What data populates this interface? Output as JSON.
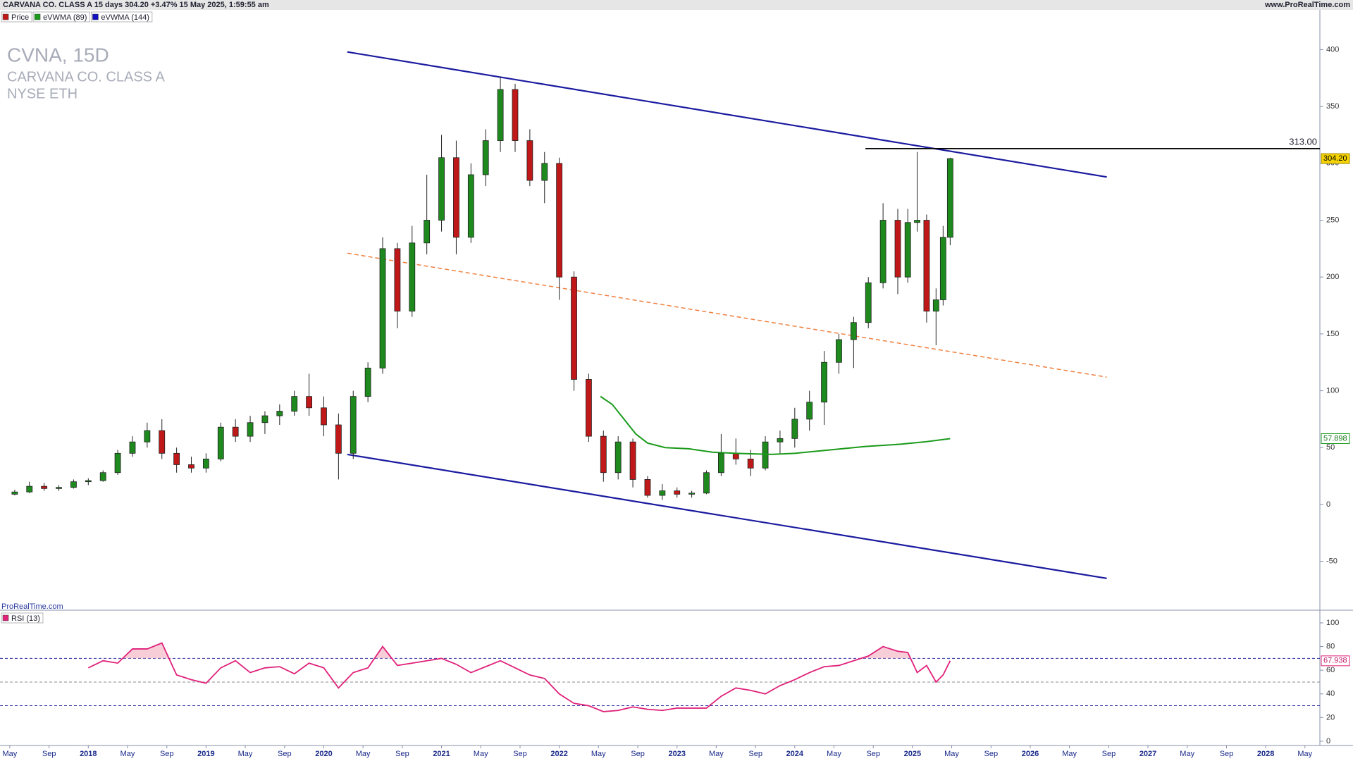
{
  "header": {
    "instrument": "CARVANA CO. CLASS A 15 days 304.20 +3.47% 15 May 2025, 1:59:55 am",
    "site": "www.ProRealTime.com"
  },
  "chart_data": {
    "type": "candlestick",
    "title": "CVNA, 15D",
    "subtitle": "CARVANA CO. CLASS A",
    "exchange": "NYSE ETH",
    "watermark": "ProRealTime.com",
    "legend": [
      {
        "name": "Price",
        "color": "#c01818"
      },
      {
        "name": "eVWMA (89)",
        "color": "#1a9a1a"
      },
      {
        "name": "eVWMA (144)",
        "color": "#1010c0"
      }
    ],
    "up_color": "#1e8a1e",
    "down_color": "#c01818",
    "candles": {
      "x": [
        2017.375,
        2017.5,
        2017.625,
        2017.75,
        2017.875,
        2018,
        2018.125,
        2018.25,
        2018.375,
        2018.5,
        2018.625,
        2018.75,
        2018.875,
        2019,
        2019.125,
        2019.25,
        2019.375,
        2019.5,
        2019.625,
        2019.75,
        2019.875,
        2020,
        2020.125,
        2020.25,
        2020.375,
        2020.5,
        2020.625,
        2020.75,
        2020.875,
        2021,
        2021.125,
        2021.25,
        2021.375,
        2021.5,
        2021.625,
        2021.75,
        2021.875,
        2022,
        2022.125,
        2022.25,
        2022.375,
        2022.5,
        2022.625,
        2022.75,
        2022.875,
        2023,
        2023.125,
        2023.25,
        2023.375,
        2023.5,
        2023.625,
        2023.75,
        2023.875,
        2024,
        2024.125,
        2024.25,
        2024.375,
        2024.5,
        2024.625,
        2024.75,
        2024.875,
        2024.96,
        2025.04,
        2025.12,
        2025.2,
        2025.26,
        2025.32
      ],
      "open": [
        9,
        11,
        16,
        14,
        15,
        20,
        21,
        28,
        45,
        55,
        65,
        45,
        35,
        32,
        40,
        68,
        60,
        72,
        78,
        82,
        95,
        85,
        70,
        45,
        95,
        120,
        225,
        170,
        230,
        250,
        305,
        235,
        290,
        320,
        365,
        320,
        285,
        300,
        200,
        110,
        60,
        28,
        55,
        22,
        8,
        12,
        9,
        10,
        28,
        45,
        40,
        32,
        55,
        58,
        75,
        90,
        125,
        145,
        160,
        195,
        250,
        200,
        248,
        250,
        170,
        180,
        235
      ],
      "high": [
        13,
        20,
        19,
        17,
        22,
        23,
        30,
        48,
        60,
        72,
        75,
        50,
        42,
        45,
        72,
        75,
        78,
        82,
        88,
        100,
        115,
        95,
        80,
        100,
        125,
        235,
        230,
        245,
        290,
        325,
        320,
        300,
        330,
        376,
        370,
        330,
        310,
        305,
        205,
        115,
        65,
        60,
        58,
        25,
        18,
        15,
        12,
        30,
        62,
        58,
        48,
        60,
        65,
        85,
        100,
        135,
        150,
        165,
        200,
        265,
        260,
        260,
        310,
        255,
        190,
        245,
        305
      ],
      "low": [
        8,
        10,
        12,
        12,
        14,
        17,
        20,
        26,
        42,
        50,
        40,
        28,
        28,
        28,
        38,
        55,
        55,
        62,
        70,
        78,
        78,
        60,
        22,
        40,
        90,
        115,
        155,
        165,
        220,
        240,
        220,
        230,
        280,
        310,
        310,
        280,
        265,
        180,
        100,
        55,
        20,
        22,
        15,
        6,
        4,
        6,
        6,
        9,
        25,
        35,
        25,
        30,
        45,
        50,
        65,
        70,
        115,
        120,
        155,
        190,
        185,
        195,
        240,
        160,
        140,
        175,
        228
      ],
      "close": [
        11,
        16,
        14,
        15,
        20,
        21,
        28,
        45,
        55,
        65,
        45,
        35,
        32,
        40,
        68,
        60,
        72,
        78,
        82,
        95,
        85,
        70,
        45,
        95,
        120,
        225,
        170,
        230,
        250,
        305,
        235,
        290,
        320,
        365,
        320,
        285,
        300,
        200,
        110,
        60,
        28,
        55,
        22,
        8,
        12,
        9,
        10,
        28,
        45,
        40,
        32,
        55,
        58,
        75,
        90,
        125,
        145,
        160,
        195,
        250,
        200,
        248,
        250,
        170,
        180,
        235,
        304.2
      ]
    },
    "evwma89": {
      "x": [
        2022.35,
        2022.45,
        2022.55,
        2022.65,
        2022.75,
        2022.9,
        2023.1,
        2023.3,
        2023.5,
        2023.8,
        2024,
        2024.3,
        2024.6,
        2024.9,
        2025.1,
        2025.25,
        2025.32
      ],
      "values": [
        95,
        88,
        75,
        62,
        54,
        50,
        49,
        46,
        45,
        44,
        45,
        48,
        51,
        53,
        55,
        57,
        57.898
      ]
    },
    "trendlines": [
      {
        "x": [
          2020.2,
          2026.65
        ],
        "y": [
          398,
          288
        ],
        "color": "#1a1aa0",
        "dashed": false
      },
      {
        "x": [
          2020.2,
          2026.65
        ],
        "y": [
          44,
          -65
        ],
        "color": "#1a1aa0",
        "dashed": false
      },
      {
        "x": [
          2020.2,
          2026.65
        ],
        "y": [
          221,
          112
        ],
        "color": "#f08040",
        "dashed": true
      }
    ],
    "level": {
      "x_start": 2024.6,
      "value": 313,
      "label": "313.00"
    },
    "last_price": {
      "value": 304.2,
      "label": "304.20"
    },
    "xlim": [
      2017.25,
      2028.46
    ],
    "ylim": [
      -93,
      435
    ],
    "yticks": [
      -50,
      0,
      50,
      100,
      150,
      200,
      250,
      300,
      350,
      400
    ],
    "xticks": [
      {
        "value": 2017.333,
        "label": "May"
      },
      {
        "value": 2017.667,
        "label": "Sep"
      },
      2018,
      {
        "value": 2018.333,
        "label": "May"
      },
      {
        "value": 2018.667,
        "label": "Sep"
      },
      2019,
      {
        "value": 2019.333,
        "label": "May"
      },
      {
        "value": 2019.667,
        "label": "Sep"
      },
      2020,
      {
        "value": 2020.333,
        "label": "May"
      },
      {
        "value": 2020.667,
        "label": "Sep"
      },
      2021,
      {
        "value": 2021.333,
        "label": "May"
      },
      {
        "value": 2021.667,
        "label": "Sep"
      },
      2022,
      {
        "value": 2022.333,
        "label": "May"
      },
      {
        "value": 2022.667,
        "label": "Sep"
      },
      2023,
      {
        "value": 2023.333,
        "label": "May"
      },
      {
        "value": 2023.667,
        "label": "Sep"
      },
      2024,
      {
        "value": 2024.333,
        "label": "May"
      },
      {
        "value": 2024.667,
        "label": "Sep"
      },
      2025,
      {
        "value": 2025.333,
        "label": "May"
      },
      {
        "value": 2025.667,
        "label": "Sep"
      },
      2026,
      {
        "value": 2026.333,
        "label": "May"
      },
      {
        "value": 2026.667,
        "label": "Sep"
      },
      2027,
      {
        "value": 2027.333,
        "label": "May"
      },
      {
        "value": 2027.667,
        "label": "Sep"
      },
      2028,
      {
        "value": 2028.333,
        "label": "May"
      }
    ],
    "rsi": {
      "name": "RSI (13)",
      "color": "#e0207a",
      "x": [
        2018,
        2018.125,
        2018.25,
        2018.375,
        2018.5,
        2018.625,
        2018.75,
        2018.875,
        2019,
        2019.125,
        2019.25,
        2019.375,
        2019.5,
        2019.625,
        2019.75,
        2019.875,
        2020,
        2020.125,
        2020.25,
        2020.375,
        2020.5,
        2020.625,
        2020.75,
        2020.875,
        2021,
        2021.125,
        2021.25,
        2021.375,
        2021.5,
        2021.625,
        2021.75,
        2021.875,
        2022,
        2022.125,
        2022.25,
        2022.375,
        2022.5,
        2022.625,
        2022.75,
        2022.875,
        2023,
        2023.125,
        2023.25,
        2023.375,
        2023.5,
        2023.625,
        2023.75,
        2023.875,
        2024,
        2024.125,
        2024.25,
        2024.375,
        2024.5,
        2024.625,
        2024.75,
        2024.875,
        2024.96,
        2025.04,
        2025.12,
        2025.2,
        2025.26,
        2025.32
      ],
      "values": [
        62,
        68,
        66,
        78,
        78,
        83,
        56,
        52,
        49,
        62,
        68,
        58,
        62,
        63,
        57,
        66,
        62,
        45,
        58,
        62,
        80,
        64,
        66,
        68,
        70,
        65,
        58,
        63,
        68,
        62,
        56,
        53,
        40,
        32,
        30,
        25,
        26,
        29,
        27,
        26,
        28,
        28,
        28,
        38,
        45,
        43,
        40,
        47,
        52,
        58,
        63,
        64,
        68,
        72,
        80,
        76,
        75,
        58,
        64,
        50,
        56,
        67.938
      ],
      "levels": [
        30,
        50,
        70
      ],
      "ylim": [
        -3.6,
        110.7
      ],
      "yticks": [
        0,
        20,
        40,
        60,
        80,
        100
      ]
    }
  }
}
